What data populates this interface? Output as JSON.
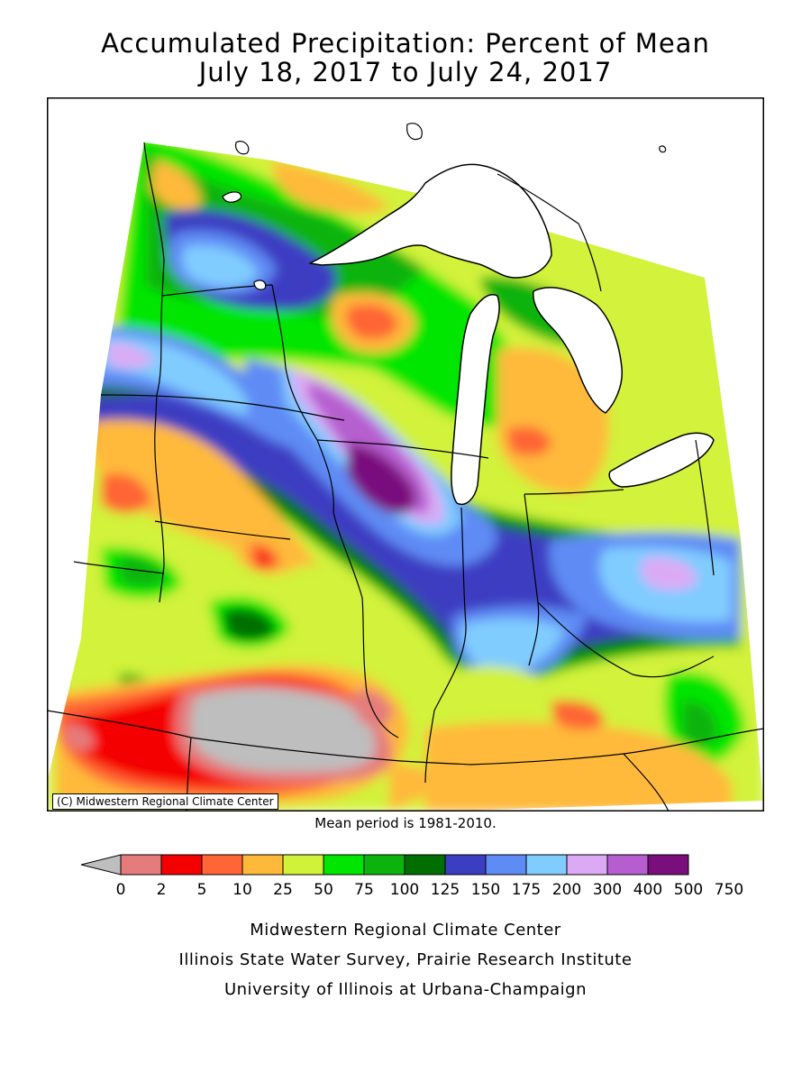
{
  "title": {
    "line1": "Accumulated Precipitation: Percent of Mean",
    "line2": "July 18, 2017 to July 24, 2017"
  },
  "map": {
    "copyright": "(C) Midwestern Regional Climate Center",
    "mean_note": "Mean period is 1981-2010.",
    "lake_color": "#ffffff",
    "border_color": "#000000",
    "background_color": "#ffffff"
  },
  "legend": {
    "labels": [
      "0",
      "2",
      "5",
      "10",
      "25",
      "50",
      "75",
      "100",
      "125",
      "150",
      "175",
      "200",
      "300",
      "400",
      "500",
      "750"
    ],
    "colors": [
      "#bebebe",
      "#e57b7b",
      "#f50000",
      "#ff6535",
      "#ffb93a",
      "#d2f23a",
      "#00e600",
      "#0db30d",
      "#006e00",
      "#3c3ec2",
      "#5f8bf5",
      "#80ccff",
      "#dcaaf5",
      "#b65ecf",
      "#7a0e7d"
    ]
  },
  "credits": {
    "line1": "Midwestern Regional Climate Center",
    "line2": "Illinois State Water Survey, Prairie Research Institute",
    "line3": "University of Illinois at Urbana-Champaign"
  }
}
